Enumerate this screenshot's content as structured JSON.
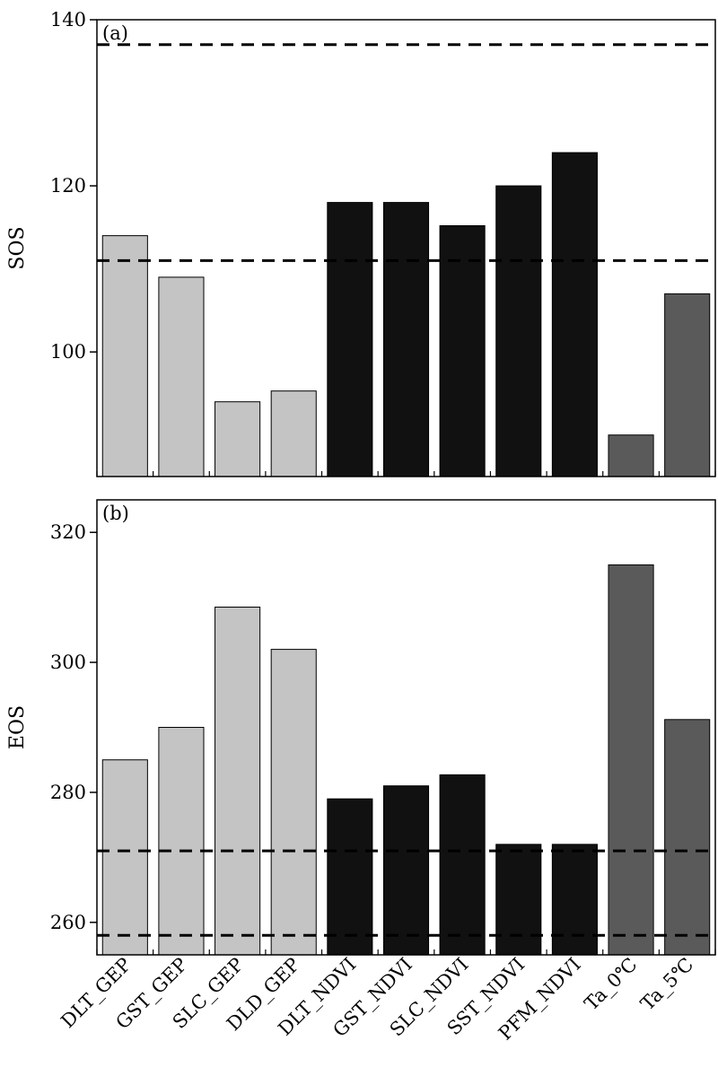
{
  "chart_data": [
    {
      "type": "bar",
      "panel_label": "(a)",
      "ylabel": "SOS",
      "ylim": [
        85,
        140
      ],
      "yticks": [
        100,
        120,
        140
      ],
      "grid": false,
      "categories": [
        "DLT_GEP",
        "GST_GEP",
        "SLC_GEP",
        "DLD_GEP",
        "DLT_NDVI",
        "GST_NDVI",
        "SLC_NDVI",
        "SST_NDVI",
        "PFM_NDVI",
        "Ta_0℃",
        "Ta_5℃"
      ],
      "values": [
        114,
        109,
        94,
        95.3,
        118,
        118,
        115.2,
        120,
        124,
        90,
        107
      ],
      "bar_colors": [
        "#c4c4c4",
        "#c4c4c4",
        "#c4c4c4",
        "#c4c4c4",
        "#111111",
        "#111111",
        "#111111",
        "#111111",
        "#111111",
        "#5a5a5a",
        "#5a5a5a"
      ],
      "reference_lines": [
        137,
        111
      ]
    },
    {
      "type": "bar",
      "panel_label": "(b)",
      "ylabel": "EOS",
      "ylim": [
        255,
        325
      ],
      "yticks": [
        260,
        280,
        300,
        320
      ],
      "grid": false,
      "categories": [
        "DLT_GEP",
        "GST_GEP",
        "SLC_GEP",
        "DLD_GEP",
        "DLT_NDVI",
        "GST_NDVI",
        "SLC_NDVI",
        "SST_NDVI",
        "PFM_NDVI",
        "Ta_0℃",
        "Ta_5℃"
      ],
      "values": [
        285,
        290,
        308.5,
        302,
        279,
        281,
        282.7,
        272,
        272,
        315,
        291.2
      ],
      "bar_colors": [
        "#c4c4c4",
        "#c4c4c4",
        "#c4c4c4",
        "#c4c4c4",
        "#111111",
        "#111111",
        "#111111",
        "#111111",
        "#111111",
        "#5a5a5a",
        "#5a5a5a"
      ],
      "reference_lines": [
        271,
        258
      ]
    }
  ]
}
